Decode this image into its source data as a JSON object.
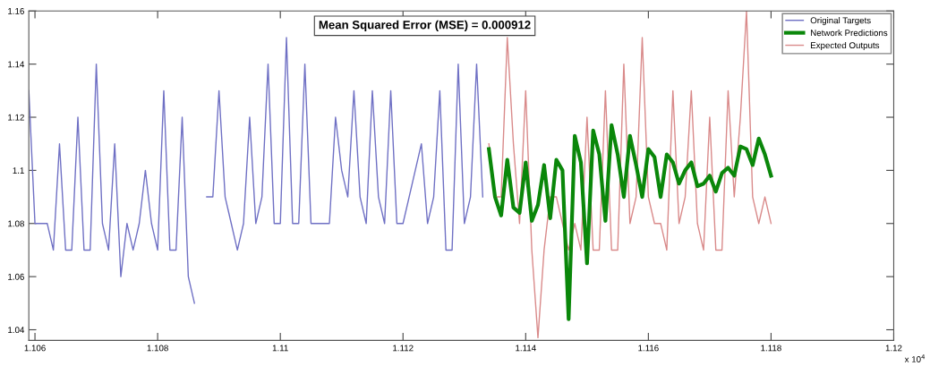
{
  "chart_data": {
    "type": "line",
    "xlim": [
      1.1059,
      1.12
    ],
    "ylim": [
      1.036,
      1.16
    ],
    "xticks": [
      1.106,
      1.108,
      {
        "value": 1.11,
        "label": "1.11"
      },
      1.112,
      1.114,
      1.116,
      1.118,
      {
        "value": 1.12,
        "label": "1.12"
      }
    ],
    "yticks": [
      1.04,
      1.06,
      1.08,
      {
        "value": 1.1,
        "label": "1.1"
      },
      1.12,
      1.14,
      1.16
    ],
    "grid": false,
    "legend": "top right",
    "marker": "none",
    "line_style": "solid",
    "annotations": [
      "Mean Squared Error (MSE) = 0.000912",
      "x 10$^{4}$"
    ],
    "series": [
      {
        "name": "Original Targets",
        "color": "#6f70c4",
        "x": [
          1.1059,
          1.106,
          1.1061,
          1.1062,
          1.1063,
          1.1064,
          1.1065,
          1.1066,
          1.1067,
          1.1068,
          1.1069,
          1.107,
          1.1071,
          1.1072,
          1.1073,
          1.1074,
          1.1075,
          1.1076,
          1.1077,
          1.1078,
          1.1079,
          1.108,
          1.1081,
          1.1082,
          1.1083,
          1.1084,
          1.1085,
          1.1086,
          1.1087,
          1.1088,
          1.1089,
          1.109,
          1.1091,
          1.1092,
          1.1093,
          1.1094,
          1.1095,
          1.1096,
          1.1097,
          1.1098,
          1.1099,
          1.11,
          1.1101,
          1.1102,
          1.1103,
          1.1104,
          1.1105,
          1.1106,
          1.1107,
          1.1108,
          1.1109,
          1.111,
          1.1111,
          1.1112,
          1.1113,
          1.1114,
          1.1115,
          1.1116,
          1.1117,
          1.1118,
          1.1119,
          1.112,
          1.1121,
          1.1122,
          1.1123,
          1.1124,
          1.1125,
          1.1126,
          1.1127,
          1.1128,
          1.1129,
          1.113,
          1.1131,
          1.1132,
          1.1133
        ],
        "values": [
          1.13,
          1.08,
          1.08,
          1.08,
          1.07,
          1.11,
          1.07,
          1.07,
          1.12,
          1.07,
          1.07,
          1.14,
          1.08,
          1.07,
          1.11,
          1.06,
          1.08,
          1.07,
          1.08,
          1.1,
          1.08,
          1.07,
          1.13,
          1.07,
          1.07,
          1.12,
          1.06,
          1.05,
          null,
          1.09,
          1.09,
          1.13,
          1.09,
          1.08,
          1.07,
          1.08,
          1.12,
          1.08,
          1.09,
          1.14,
          1.08,
          1.08,
          1.15,
          1.08,
          1.08,
          1.14,
          1.08,
          1.08,
          1.08,
          1.08,
          1.12,
          1.1,
          1.09,
          1.13,
          1.09,
          1.08,
          1.13,
          1.09,
          1.08,
          1.13,
          1.08,
          1.08,
          1.09,
          1.1,
          1.11,
          1.08,
          1.09,
          1.13,
          1.07,
          1.07,
          1.14,
          1.08,
          1.09,
          1.14,
          1.09
        ]
      },
      {
        "name": "Network Predictions",
        "color": "#0a870a",
        "x": [
          1.1134,
          1.1135,
          1.1136,
          1.1137,
          1.1138,
          1.1139,
          1.114,
          1.1141,
          1.1142,
          1.1143,
          1.1144,
          1.1145,
          1.1146,
          1.1147,
          1.1148,
          1.1149,
          1.115,
          1.1151,
          1.1152,
          1.1153,
          1.1154,
          1.1155,
          1.1156,
          1.1157,
          1.1158,
          1.1159,
          1.116,
          1.1161,
          1.1162,
          1.1163,
          1.1164,
          1.1165,
          1.1166,
          1.1167,
          1.1168,
          1.1169,
          1.117,
          1.1171,
          1.1172,
          1.1173,
          1.1174,
          1.1175,
          1.1176,
          1.1177,
          1.1178,
          1.1179,
          1.118
        ],
        "values": [
          1.108,
          1.09,
          1.083,
          1.104,
          1.086,
          1.084,
          1.103,
          1.081,
          1.087,
          1.102,
          1.082,
          1.104,
          1.1,
          1.044,
          1.113,
          1.103,
          1.065,
          1.115,
          1.106,
          1.081,
          1.117,
          1.106,
          1.09,
          1.113,
          1.102,
          1.09,
          1.108,
          1.105,
          1.09,
          1.106,
          1.103,
          1.095,
          1.1,
          1.103,
          1.094,
          1.095,
          1.098,
          1.092,
          1.099,
          1.101,
          1.098,
          1.109,
          1.108,
          1.102,
          1.112,
          1.106,
          1.098
        ]
      },
      {
        "name": "Expected Outputs",
        "color": "#d98a8a",
        "x": [
          1.1134,
          1.1135,
          1.1136,
          1.1137,
          1.1138,
          1.1139,
          1.114,
          1.1141,
          1.1142,
          1.1143,
          1.1144,
          1.1145,
          1.1146,
          1.1147,
          1.1148,
          1.1149,
          1.115,
          1.1151,
          1.1152,
          1.1153,
          1.1154,
          1.1155,
          1.1156,
          1.1157,
          1.1158,
          1.1159,
          1.116,
          1.1161,
          1.1162,
          1.1163,
          1.1164,
          1.1165,
          1.1166,
          1.1167,
          1.1168,
          1.1169,
          1.117,
          1.1171,
          1.1172,
          1.1173,
          1.1174,
          1.1175,
          1.1176,
          1.1177,
          1.1178,
          1.1179,
          1.118
        ],
        "values": [
          1.11,
          1.09,
          1.09,
          1.15,
          1.11,
          1.08,
          1.13,
          1.07,
          1.037,
          1.07,
          1.09,
          1.09,
          1.08,
          1.07,
          1.08,
          1.07,
          1.12,
          1.07,
          1.07,
          1.13,
          1.07,
          1.07,
          1.14,
          1.08,
          1.09,
          1.15,
          1.09,
          1.08,
          1.08,
          1.07,
          1.13,
          1.08,
          1.09,
          1.13,
          1.08,
          1.07,
          1.12,
          1.07,
          1.07,
          1.13,
          1.09,
          1.12,
          1.16,
          1.09,
          1.08,
          1.09,
          1.08
        ]
      }
    ]
  }
}
